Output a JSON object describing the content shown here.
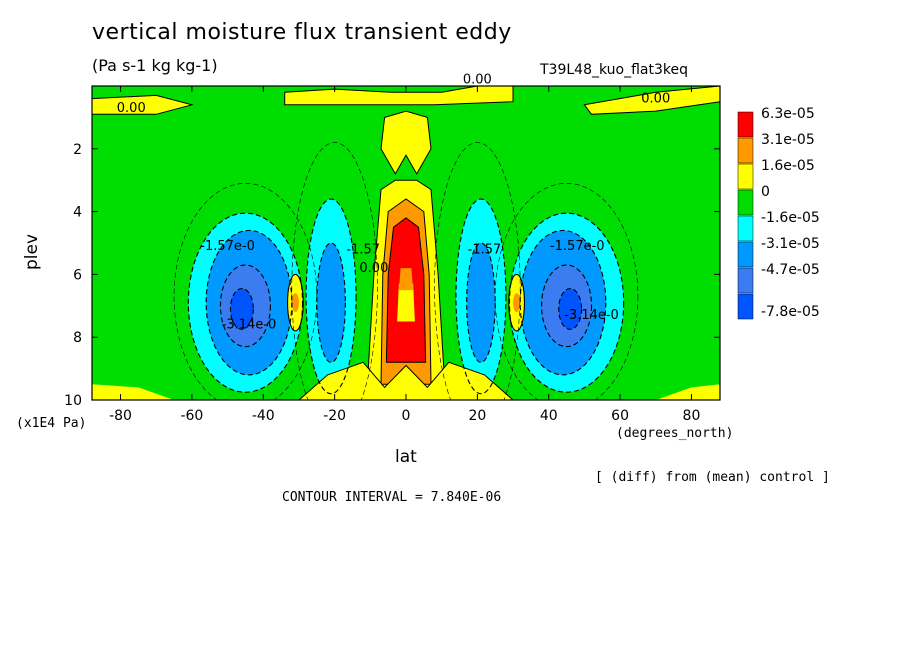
{
  "chart_data": {
    "type": "heatmap",
    "title": "vertical moisture flux transient eddy",
    "units": "(Pa s-1 kg kg-1)",
    "run_label": "T39L48_kuo_flat3keq",
    "xlabel": "lat",
    "xunits": "(degrees_north)",
    "ylabel": "plev",
    "yunits": "(x1E4 Pa)",
    "xlim": [
      -88,
      88
    ],
    "ylim": [
      10,
      0
    ],
    "x_ticks": [
      -80,
      -60,
      -40,
      -20,
      0,
      20,
      40,
      60,
      80
    ],
    "y_ticks": [
      2,
      4,
      6,
      8,
      10
    ],
    "diff_note": "[ (diff) from (mean) control ]",
    "contour_interval_text": "CONTOUR INTERVAL = 7.840E-06",
    "legend": [
      {
        "label": "6.3e-05",
        "color": "#ff0000"
      },
      {
        "label": "3.1e-05",
        "color": "#ff9900"
      },
      {
        "label": "1.6e-05",
        "color": "#ffff00"
      },
      {
        "label": "0",
        "color": "#00dd00"
      },
      {
        "label": "-1.6e-05",
        "color": "#00ffff"
      },
      {
        "label": "-3.1e-05",
        "color": "#0099ff"
      },
      {
        "label": "-4.7e-05",
        "color": "#3b7df0"
      },
      {
        "label": "-7.8e-05",
        "color": "#0055ff"
      }
    ],
    "contour_labels": [
      {
        "text": "0.00",
        "lat": -77,
        "plev": 0.7
      },
      {
        "text": "0.00",
        "lat": 20,
        "plev": -0.2
      },
      {
        "text": "0.00",
        "lat": 70,
        "plev": 0.4
      },
      {
        "text": "-1.57e-0",
        "lat": -50,
        "plev": 5.1
      },
      {
        "text": "-1.57e-0",
        "lat": 48,
        "plev": 5.1
      },
      {
        "text": "-3.14e-0",
        "lat": -44,
        "plev": 7.6
      },
      {
        "text": "-3.14e-0",
        "lat": 52,
        "plev": 7.3
      },
      {
        "text": "-1.57",
        "lat": -12,
        "plev": 5.2
      },
      {
        "text": "-1.57",
        "lat": 22,
        "plev": 5.2
      },
      {
        "text": "0.00",
        "lat": -9,
        "plev": 5.8
      }
    ]
  }
}
